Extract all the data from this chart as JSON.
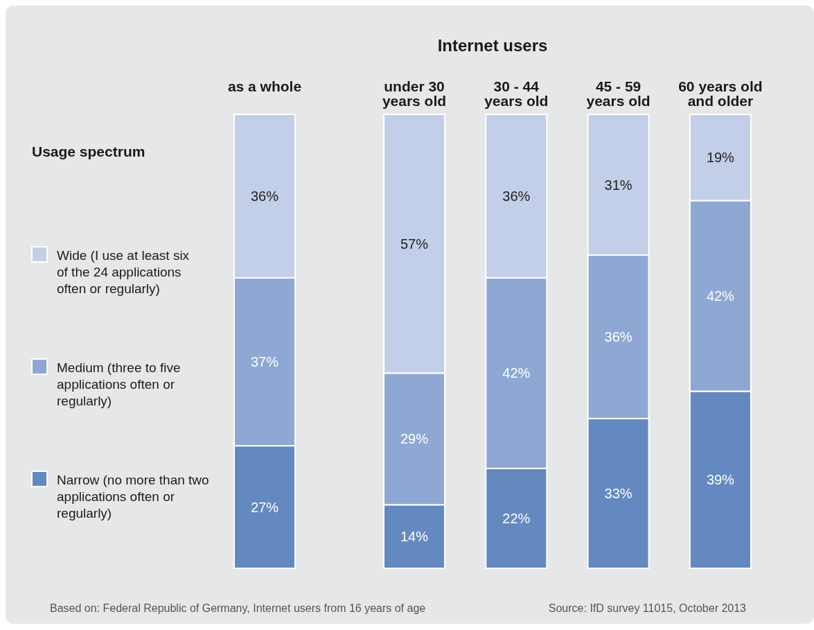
{
  "chart_data": {
    "type": "bar",
    "stacked": true,
    "title": "Internet users",
    "legend_title": "Usage spectrum",
    "legend": "left",
    "categories": [
      "as a whole",
      "under 30 years old",
      "30 - 44 years old",
      "45 - 59 years old",
      "60 years old and older"
    ],
    "series": [
      {
        "name": "Narrow (no more than two applications often or regularly)",
        "color": "#6489c0",
        "values": [
          27,
          14,
          22,
          33,
          39
        ],
        "value_labels": [
          "27%",
          "14%",
          "22%",
          "33%",
          "39%"
        ]
      },
      {
        "name": "Medium (three to five applications often or regularly)",
        "color": "#8fa8d3",
        "values": [
          37,
          29,
          42,
          36,
          42
        ],
        "value_labels": [
          "37%",
          "29%",
          "42%",
          "36%",
          "42%"
        ]
      },
      {
        "name": "Wide (I use at least six of the 24 applications often or regularly)",
        "color": "#c3cfe8",
        "values": [
          36,
          57,
          36,
          31,
          19
        ],
        "value_labels": [
          "36%",
          "57%",
          "36%",
          "31%",
          "19%"
        ]
      }
    ],
    "ylim": [
      0,
      100
    ],
    "tick_labels": "x",
    "annotations": [
      "Based on: Federal Republic of Germany, Internet users from 16 years of age",
      "Source: IfD survey 11015, October 2013"
    ]
  }
}
